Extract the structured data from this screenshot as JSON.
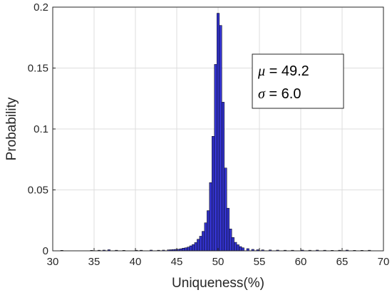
{
  "chart_data": {
    "type": "bar",
    "subtype": "histogram",
    "title": "",
    "xlabel": "Uniqueness(%)",
    "ylabel": "Probability",
    "xlim": [
      30,
      70
    ],
    "ylim": [
      0,
      0.2
    ],
    "xticks": [
      "30",
      "35",
      "40",
      "45",
      "50",
      "55",
      "60",
      "65",
      "70"
    ],
    "yticks": [
      "0",
      "0.05",
      "0.1",
      "0.15",
      "0.2"
    ],
    "grid": true,
    "bar_color": "#3333cc",
    "bar_edge_color": "#000000",
    "bin_width": 0.3,
    "x": [
      31.1,
      34.7,
      35.6,
      36.2,
      36.8,
      37.7,
      38.6,
      40.1,
      40.7,
      41.9,
      42.8,
      43.4,
      44.0,
      44.3,
      44.6,
      44.9,
      45.2,
      45.5,
      45.8,
      46.1,
      46.4,
      46.7,
      47.0,
      47.3,
      47.6,
      47.9,
      48.2,
      48.5,
      48.8,
      49.1,
      49.4,
      49.7,
      50.0,
      50.3,
      50.6,
      50.9,
      51.2,
      51.5,
      51.8,
      52.1,
      52.4,
      52.7,
      53.0,
      53.6,
      54.2,
      54.8,
      55.4,
      56.3,
      57.2,
      58.1,
      59.0,
      60.2,
      61.1,
      62.0,
      62.9,
      63.8,
      64.7,
      65.6,
      66.5,
      67.4,
      68.3
    ],
    "values": [
      0.0004,
      0.0004,
      0.0005,
      0.0006,
      0.0009,
      0.0005,
      0.0004,
      0.0005,
      0.0005,
      0.0006,
      0.0005,
      0.0006,
      0.0008,
      0.0009,
      0.0011,
      0.0012,
      0.0013,
      0.0017,
      0.0022,
      0.0025,
      0.0031,
      0.0041,
      0.0052,
      0.0068,
      0.0095,
      0.012,
      0.016,
      0.023,
      0.033,
      0.056,
      0.094,
      0.153,
      0.195,
      0.185,
      0.122,
      0.068,
      0.035,
      0.018,
      0.011,
      0.007,
      0.005,
      0.0035,
      0.0025,
      0.0018,
      0.0012,
      0.0009,
      0.0008,
      0.0007,
      0.0006,
      0.0005,
      0.0005,
      0.0006,
      0.0005,
      0.0006,
      0.0005,
      0.0004,
      0.0005,
      0.0006,
      0.0004,
      0.0004,
      0.0005
    ],
    "annotations": {
      "mu_symbol": "μ",
      "mu_value": " = 49.2",
      "sigma_symbol": "σ",
      "sigma_value": " = 6.0"
    }
  }
}
